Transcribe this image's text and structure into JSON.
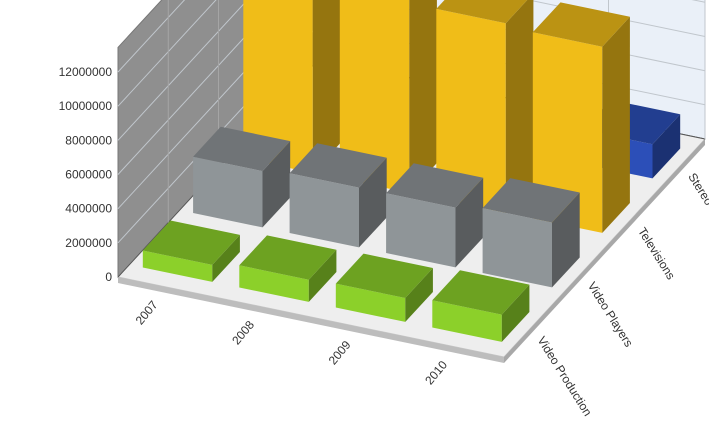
{
  "chart_data": {
    "type": "bar",
    "three_d": true,
    "categories": [
      "2007",
      "2008",
      "2009",
      "2010"
    ],
    "series": [
      {
        "name": "Video Production",
        "values": [
          1000000,
          1300000,
          1400000,
          1600000
        ],
        "color": "#8cd02a"
      },
      {
        "name": "Video Players",
        "values": [
          3300000,
          3500000,
          3500000,
          3800000
        ],
        "color": "#8f9598"
      },
      {
        "name": "Televisions",
        "values": [
          10900000,
          11300000,
          11100000,
          10900000
        ],
        "color": "#f0bd18"
      },
      {
        "name": "Stereo Systems",
        "values": [
          0,
          0,
          0,
          2000000
        ],
        "color": "#2c4fb8"
      }
    ],
    "y_ticks": [
      "0",
      "2000000",
      "4000000",
      "6000000",
      "8000000",
      "10000000",
      "12000000"
    ],
    "ylim": [
      0,
      12000000
    ],
    "grid": true,
    "title": "",
    "xlabel": "",
    "ylabel": ""
  }
}
